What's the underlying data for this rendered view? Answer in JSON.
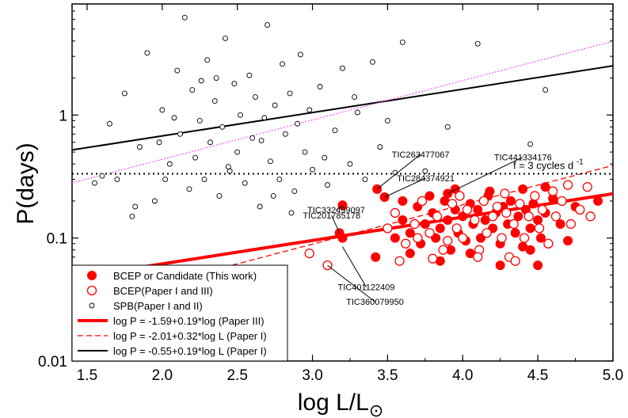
{
  "chart_data": {
    "type": "scatter",
    "title": "",
    "xlabel": "log L/L",
    "xlabel_sub": "⊙",
    "ylabel": "P(days)",
    "xlim": [
      1.4,
      5.0
    ],
    "ylim": [
      0.01,
      8
    ],
    "yscale": "log",
    "xticks": [
      1.5,
      2.0,
      2.5,
      3.0,
      3.5,
      4.0,
      4.5,
      5.0
    ],
    "xtick_labels": [
      "1.5",
      "2.0",
      "2.5",
      "3.0",
      "3.5",
      "4.0",
      "4.5",
      "5.0"
    ],
    "yticks": [
      0.01,
      0.1,
      1
    ],
    "ytick_labels": [
      "0.01",
      "0.1",
      "1"
    ],
    "grid": false,
    "legend_position": "bottom-left",
    "reference_line": {
      "y": 0.333,
      "label": "f = 3 cycles d",
      "label_sup": "-1",
      "color": "#000000"
    },
    "fit_lines": [
      {
        "name": "log P = -1.59+0.19*log (Paper III)",
        "intercept": -1.59,
        "slope": 0.19,
        "color": "#ff0000",
        "style": "thick",
        "x_from": 1.4,
        "x_to": 5.0
      },
      {
        "name": "log P = -2.01+0.32*log L (Paper I)",
        "intercept": -2.01,
        "slope": 0.32,
        "color": "#ff0000",
        "style": "dashed",
        "x_from": 1.4,
        "x_to": 5.0
      },
      {
        "name": "log P = -0.55+0.19*log L (Paper I)",
        "intercept": -0.55,
        "slope": 0.19,
        "color": "#000000",
        "style": "solid",
        "x_from": 1.4,
        "x_to": 5.0
      },
      {
        "name": "",
        "intercept": -1.0,
        "slope": 0.32,
        "color": "#ff33ff",
        "style": "dotted",
        "x_from": 1.4,
        "x_to": 5.0
      }
    ],
    "legend": [
      {
        "label": "BCEP or Candidate (This work)",
        "marker": "filled-red"
      },
      {
        "label": "BCEP(Paper I and III)",
        "marker": "open-red"
      },
      {
        "label": "SPB(Paper I and II)",
        "marker": "open-black"
      },
      {
        "label": "log P = -1.59+0.19*log (Paper III)",
        "marker": "line-red-thick"
      },
      {
        "label": "log P = -2.01+0.32*log L (Paper I)",
        "marker": "line-red-dashed"
      },
      {
        "label": "log P = -0.55+0.19*log L (Paper I)",
        "marker": "line-black"
      }
    ],
    "annotations": [
      {
        "text": "TIC263477067",
        "x": 3.43,
        "y": 0.25
      },
      {
        "text": "TIC441334176",
        "x": 3.9,
        "y": 0.23
      },
      {
        "text": "TIC332499097",
        "x": 3.2,
        "y": 0.185
      },
      {
        "text": "TIC284374921",
        "x": 3.48,
        "y": 0.215
      },
      {
        "text": "TIC201785178",
        "x": 3.18,
        "y": 0.11
      },
      {
        "text": "TIC401122409",
        "x": 3.2,
        "y": 0.085
      },
      {
        "text": "TIC360079950",
        "x": 3.1,
        "y": 0.06
      }
    ],
    "series": [
      {
        "name": "BCEP or Candidate (This work)",
        "color": "#ff0000",
        "marker": "filled",
        "points": [
          [
            3.43,
            0.25
          ],
          [
            3.9,
            0.23
          ],
          [
            3.2,
            0.185
          ],
          [
            3.48,
            0.215
          ],
          [
            3.18,
            0.11
          ],
          [
            3.2,
            0.1
          ],
          [
            3.42,
            0.07
          ],
          [
            3.55,
            0.1
          ],
          [
            3.6,
            0.14
          ],
          [
            3.65,
            0.11
          ],
          [
            3.7,
            0.18
          ],
          [
            3.72,
            0.09
          ],
          [
            3.75,
            0.13
          ],
          [
            3.8,
            0.16
          ],
          [
            3.82,
            0.1
          ],
          [
            3.85,
            0.12
          ],
          [
            3.88,
            0.2
          ],
          [
            3.9,
            0.14
          ],
          [
            3.92,
            0.08
          ],
          [
            3.95,
            0.17
          ],
          [
            3.97,
            0.11
          ],
          [
            4.0,
            0.15
          ],
          [
            4.02,
            0.095
          ],
          [
            4.05,
            0.19
          ],
          [
            4.07,
            0.13
          ],
          [
            4.1,
            0.17
          ],
          [
            4.12,
            0.1
          ],
          [
            4.15,
            0.14
          ],
          [
            4.17,
            0.22
          ],
          [
            4.2,
            0.12
          ],
          [
            4.22,
            0.16
          ],
          [
            4.25,
            0.09
          ],
          [
            4.27,
            0.18
          ],
          [
            4.3,
            0.13
          ],
          [
            4.32,
            0.2
          ],
          [
            4.35,
            0.11
          ],
          [
            4.37,
            0.15
          ],
          [
            4.4,
            0.085
          ],
          [
            4.42,
            0.17
          ],
          [
            4.45,
            0.12
          ],
          [
            4.47,
            0.19
          ],
          [
            4.5,
            0.14
          ],
          [
            4.52,
            0.1
          ],
          [
            4.55,
            0.16
          ],
          [
            4.6,
            0.21
          ],
          [
            4.65,
            0.13
          ],
          [
            4.7,
            0.095
          ],
          [
            4.75,
            0.18
          ],
          [
            4.9,
            0.2
          ],
          [
            3.85,
            0.065
          ],
          [
            4.25,
            0.06
          ],
          [
            4.5,
            0.06
          ],
          [
            3.65,
            0.075
          ],
          [
            4.05,
            0.075
          ],
          [
            4.45,
            0.08
          ],
          [
            3.6,
            0.2
          ],
          [
            3.78,
            0.22
          ],
          [
            4.18,
            0.24
          ],
          [
            4.4,
            0.25
          ],
          [
            4.55,
            0.26
          ],
          [
            3.95,
            0.25
          ]
        ]
      },
      {
        "name": "BCEP(Paper I and III)",
        "color": "#ff0000",
        "marker": "open",
        "points": [
          [
            2.98,
            0.075
          ],
          [
            3.1,
            0.06
          ],
          [
            3.5,
            0.12
          ],
          [
            3.55,
            0.16
          ],
          [
            3.62,
            0.09
          ],
          [
            3.68,
            0.13
          ],
          [
            3.73,
            0.2
          ],
          [
            3.78,
            0.11
          ],
          [
            3.83,
            0.15
          ],
          [
            3.87,
            0.08
          ],
          [
            3.93,
            0.19
          ],
          [
            3.96,
            0.12
          ],
          [
            4.0,
            0.1
          ],
          [
            4.03,
            0.17
          ],
          [
            4.08,
            0.14
          ],
          [
            4.11,
            0.08
          ],
          [
            4.14,
            0.2
          ],
          [
            4.16,
            0.11
          ],
          [
            4.2,
            0.15
          ],
          [
            4.23,
            0.18
          ],
          [
            4.26,
            0.1
          ],
          [
            4.29,
            0.16
          ],
          [
            4.31,
            0.07
          ],
          [
            4.34,
            0.13
          ],
          [
            4.38,
            0.19
          ],
          [
            4.41,
            0.1
          ],
          [
            4.44,
            0.15
          ],
          [
            4.48,
            0.22
          ],
          [
            4.51,
            0.12
          ],
          [
            4.53,
            0.17
          ],
          [
            4.57,
            0.09
          ],
          [
            4.62,
            0.15
          ],
          [
            4.66,
            0.2
          ],
          [
            4.72,
            0.13
          ],
          [
            4.78,
            0.17
          ],
          [
            4.83,
            0.26
          ],
          [
            4.85,
            0.15
          ],
          [
            3.58,
            0.065
          ],
          [
            3.8,
            0.068
          ],
          [
            4.1,
            0.07
          ],
          [
            4.35,
            0.065
          ],
          [
            3.98,
            0.22
          ],
          [
            4.28,
            0.23
          ],
          [
            4.6,
            0.24
          ],
          [
            4.7,
            0.27
          ],
          [
            3.7,
            0.1
          ],
          [
            3.9,
            0.095
          ]
        ]
      },
      {
        "name": "SPB(Paper I and II)",
        "color": "#000000",
        "marker": "open-small",
        "points": [
          [
            1.6,
            0.32
          ],
          [
            1.65,
            0.85
          ],
          [
            1.7,
            0.3
          ],
          [
            1.75,
            1.5
          ],
          [
            1.8,
            0.15
          ],
          [
            1.85,
            0.55
          ],
          [
            1.9,
            3.2
          ],
          [
            1.95,
            0.2
          ],
          [
            2.0,
            1.1
          ],
          [
            2.05,
            0.4
          ],
          [
            2.1,
            2.3
          ],
          [
            2.12,
            0.7
          ],
          [
            2.15,
            6.2
          ],
          [
            2.18,
            0.25
          ],
          [
            2.2,
            1.6
          ],
          [
            2.22,
            0.45
          ],
          [
            2.25,
            0.9
          ],
          [
            2.28,
            0.3
          ],
          [
            2.3,
            2.8
          ],
          [
            2.32,
            0.6
          ],
          [
            2.35,
            1.3
          ],
          [
            2.38,
            0.22
          ],
          [
            2.4,
            0.8
          ],
          [
            2.42,
            4.2
          ],
          [
            2.45,
            0.35
          ],
          [
            2.48,
            1.8
          ],
          [
            2.5,
            0.5
          ],
          [
            2.52,
            1.0
          ],
          [
            2.55,
            0.28
          ],
          [
            2.58,
            2.1
          ],
          [
            2.6,
            0.65
          ],
          [
            2.62,
            1.4
          ],
          [
            2.65,
            0.18
          ],
          [
            2.68,
            0.95
          ],
          [
            2.7,
            5.4
          ],
          [
            2.72,
            0.42
          ],
          [
            2.75,
            1.2
          ],
          [
            2.78,
            0.3
          ],
          [
            2.8,
            2.6
          ],
          [
            2.82,
            0.7
          ],
          [
            2.85,
            1.5
          ],
          [
            2.88,
            0.24
          ],
          [
            2.9,
            0.85
          ],
          [
            2.92,
            3.1
          ],
          [
            2.95,
            0.5
          ],
          [
            2.98,
            1.1
          ],
          [
            3.0,
            0.36
          ],
          [
            3.05,
            1.7
          ],
          [
            3.1,
            0.27
          ],
          [
            3.15,
            0.75
          ],
          [
            3.2,
            2.4
          ],
          [
            3.25,
            0.4
          ],
          [
            3.3,
            1.05
          ],
          [
            3.35,
            0.3
          ],
          [
            3.4,
            2.7
          ],
          [
            3.45,
            0.55
          ],
          [
            3.5,
            0.9
          ],
          [
            3.6,
            3.9
          ],
          [
            3.75,
            0.35
          ],
          [
            3.9,
            0.8
          ],
          [
            4.1,
            3.8
          ],
          [
            4.45,
            0.58
          ],
          [
            4.55,
            1.6
          ],
          [
            1.55,
            0.28
          ],
          [
            1.82,
            0.18
          ],
          [
            1.98,
            0.6
          ],
          [
            2.08,
            0.95
          ],
          [
            2.26,
            1.9
          ],
          [
            2.44,
            0.38
          ],
          [
            2.66,
            0.62
          ],
          [
            2.86,
            0.16
          ],
          [
            3.08,
            0.45
          ],
          [
            3.28,
            1.4
          ],
          [
            3.55,
            0.34
          ],
          [
            2.02,
            0.3
          ],
          [
            2.36,
            2.0
          ],
          [
            2.74,
            0.22
          ]
        ]
      }
    ]
  }
}
